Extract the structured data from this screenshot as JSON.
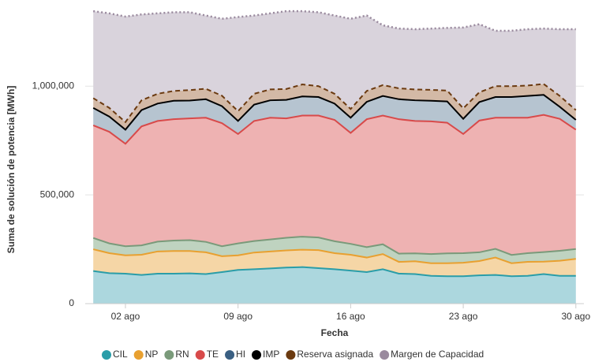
{
  "chart_data": {
    "type": "stacked_area",
    "x_label": "Fecha",
    "y_label": "Suma de solución de potencia [MWh]",
    "x": [
      0,
      1,
      2,
      3,
      4,
      5,
      6,
      7,
      8,
      9,
      10,
      11,
      12,
      13,
      14,
      15,
      16,
      17,
      18,
      19,
      20,
      21,
      22,
      23,
      24,
      25,
      26,
      27,
      28,
      29,
      30
    ],
    "xlim": [
      -0.5,
      30.5
    ],
    "xticks": [
      {
        "value": 2,
        "label": "02 ago"
      },
      {
        "value": 9,
        "label": "09 ago"
      },
      {
        "value": 16,
        "label": "16 ago"
      },
      {
        "value": 23,
        "label": "23 ago"
      },
      {
        "value": 30,
        "label": "30 ago"
      }
    ],
    "ylim": [
      0,
      1360000
    ],
    "yticks": [
      0,
      {
        "value": 500000,
        "label": "500,000"
      },
      {
        "value": 1000000,
        "label": "1,000,000"
      }
    ],
    "grid": true,
    "legend": "bottom",
    "series": [
      {
        "name": "CIL",
        "color": "#2a9da8",
        "fill": "#acd7de",
        "line_style": "solid",
        "values": [
          150000,
          140000,
          138000,
          132000,
          138000,
          138000,
          139000,
          136000,
          145000,
          155000,
          158000,
          162000,
          166000,
          168000,
          163000,
          158000,
          152000,
          145000,
          158000,
          138000,
          136000,
          128000,
          126000,
          126000,
          130000,
          132000,
          126000,
          128000,
          136000,
          128000,
          128000
        ]
      },
      {
        "name": "NP",
        "color": "#e8a030",
        "fill": "#f5d6a6",
        "line_style": "solid",
        "values": [
          100000,
          92000,
          84000,
          93000,
          102000,
          104000,
          103000,
          100000,
          73000,
          67000,
          77000,
          78000,
          79000,
          80000,
          83000,
          74000,
          73000,
          67000,
          70000,
          54000,
          59000,
          58000,
          60000,
          62000,
          66000,
          80000,
          60000,
          64000,
          57000,
          69000,
          78000
        ]
      },
      {
        "name": "RN",
        "color": "#7a9a7a",
        "fill": "#bfd3c0",
        "line_style": "solid",
        "values": [
          52000,
          45000,
          42000,
          43000,
          45000,
          48000,
          50000,
          48000,
          46000,
          55000,
          53000,
          55000,
          58000,
          60000,
          58000,
          55000,
          50000,
          48000,
          45000,
          38000,
          36000,
          42000,
          45000,
          44000,
          40000,
          40000,
          38000,
          40000,
          44000,
          46000,
          45000
        ]
      },
      {
        "name": "TE",
        "color": "#d84a4a",
        "fill": "#eeb2b2",
        "line_style": "solid",
        "values": [
          518000,
          513000,
          471000,
          547000,
          555000,
          558000,
          560000,
          571000,
          566000,
          503000,
          552000,
          560000,
          549000,
          557000,
          561000,
          558000,
          510000,
          588000,
          592000,
          618000,
          609000,
          610000,
          601000,
          548000,
          606000,
          603000,
          631000,
          623000,
          631000,
          607000,
          549000
        ]
      },
      {
        "name": "HI",
        "color": "#3a5f82",
        "fill": "#b6c4d0",
        "line_style": "none",
        "values": [
          80000,
          70000,
          65000,
          75000,
          80000,
          85000,
          82000,
          85000,
          78000,
          60000,
          75000,
          80000,
          85000,
          88000,
          85000,
          75000,
          70000,
          80000,
          90000,
          92000,
          95000,
          95000,
          98000,
          70000,
          85000,
          95000,
          95000,
          100000,
          92000,
          55000,
          45000
        ]
      },
      {
        "name": "IMP",
        "color": "#000000",
        "fill": "none",
        "line_style": "solid",
        "values": [
          0,
          0,
          0,
          0,
          0,
          0,
          0,
          0,
          0,
          0,
          0,
          0,
          0,
          0,
          0,
          0,
          0,
          0,
          0,
          0,
          0,
          0,
          0,
          0,
          0,
          0,
          0,
          0,
          0,
          0,
          0
        ]
      },
      {
        "name": "Reserva asignada",
        "color": "#6b3a10",
        "fill": "#d3b9a6",
        "line_style": "dashed",
        "values": [
          45000,
          40000,
          35000,
          45000,
          45000,
          45000,
          48000,
          48000,
          48000,
          45000,
          50000,
          50000,
          50000,
          55000,
          50000,
          45000,
          40000,
          50000,
          50000,
          50000,
          50000,
          50000,
          50000,
          48000,
          45000,
          50000,
          50000,
          48000,
          50000,
          50000,
          45000
        ]
      },
      {
        "name": "Margen de Capacidad",
        "color": "#9a8a9e",
        "fill": "#d9d3dc",
        "line_style": "dotted",
        "values": [
          400000,
          435000,
          485000,
          395000,
          370000,
          362000,
          358000,
          337000,
          354000,
          433000,
          360000,
          350000,
          358000,
          337000,
          340000,
          360000,
          415000,
          347000,
          275000,
          275000,
          277000,
          282000,
          288000,
          372000,
          313000,
          255000,
          255000,
          259000,
          255000,
          307000,
          372000
        ]
      }
    ]
  }
}
